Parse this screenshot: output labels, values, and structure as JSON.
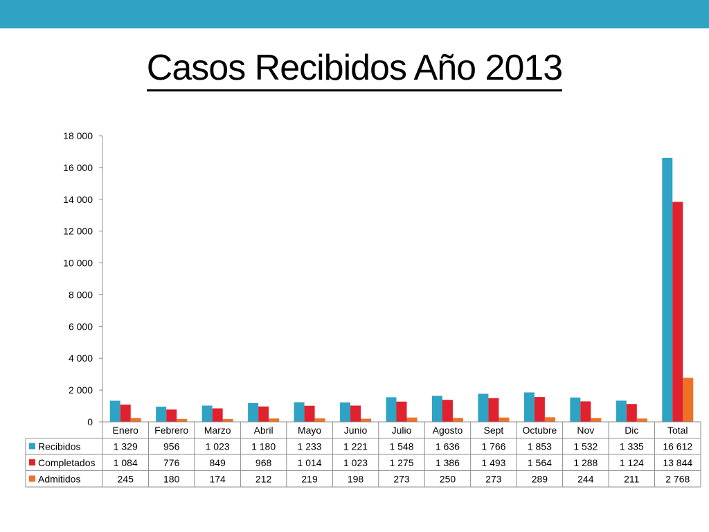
{
  "page": {
    "title": "Casos Recibidos Año 2013",
    "band_color": "#2ea3c3"
  },
  "chart_data": {
    "type": "bar",
    "title": "",
    "xlabel": "",
    "ylabel": "",
    "ylim": [
      0,
      18000
    ],
    "yticks": [
      0,
      2000,
      4000,
      6000,
      8000,
      10000,
      12000,
      14000,
      16000,
      18000
    ],
    "ytick_labels": [
      "0",
      "2 000",
      "4 000",
      "6 000",
      "8 000",
      "10 000",
      "12 000",
      "14 000",
      "16 000",
      "18 000"
    ],
    "grid": false,
    "legend": "data-table",
    "categories": [
      "Enero",
      "Febrero",
      "Marzo",
      "Abril",
      "Mayo",
      "Junio",
      "Julio",
      "Agosto",
      "Sept",
      "Octubre",
      "Nov",
      "Dic",
      "Total"
    ],
    "series": [
      {
        "name": "Recibidos",
        "color": "#2ea3c3",
        "values": [
          1329,
          956,
          1023,
          1180,
          1233,
          1221,
          1548,
          1636,
          1766,
          1853,
          1532,
          1335,
          16612
        ],
        "labels": [
          "1 329",
          "956",
          "1 023",
          "1 180",
          "1 233",
          "1 221",
          "1 548",
          "1 636",
          "1 766",
          "1 853",
          "1 532",
          "1 335",
          "16 612"
        ]
      },
      {
        "name": "Completados",
        "color": "#e0212e",
        "values": [
          1084,
          776,
          849,
          968,
          1014,
          1023,
          1275,
          1386,
          1493,
          1564,
          1288,
          1124,
          13844
        ],
        "labels": [
          "1 084",
          "776",
          "849",
          "968",
          "1 014",
          "1 023",
          "1 275",
          "1 386",
          "1 493",
          "1 564",
          "1 288",
          "1 124",
          "13 844"
        ]
      },
      {
        "name": "Admitidos",
        "color": "#ee7127",
        "values": [
          245,
          180,
          174,
          212,
          219,
          198,
          273,
          250,
          273,
          289,
          244,
          211,
          2768
        ],
        "labels": [
          "245",
          "180",
          "174",
          "212",
          "219",
          "198",
          "273",
          "250",
          "273",
          "289",
          "244",
          "211",
          "2 768"
        ]
      }
    ]
  }
}
